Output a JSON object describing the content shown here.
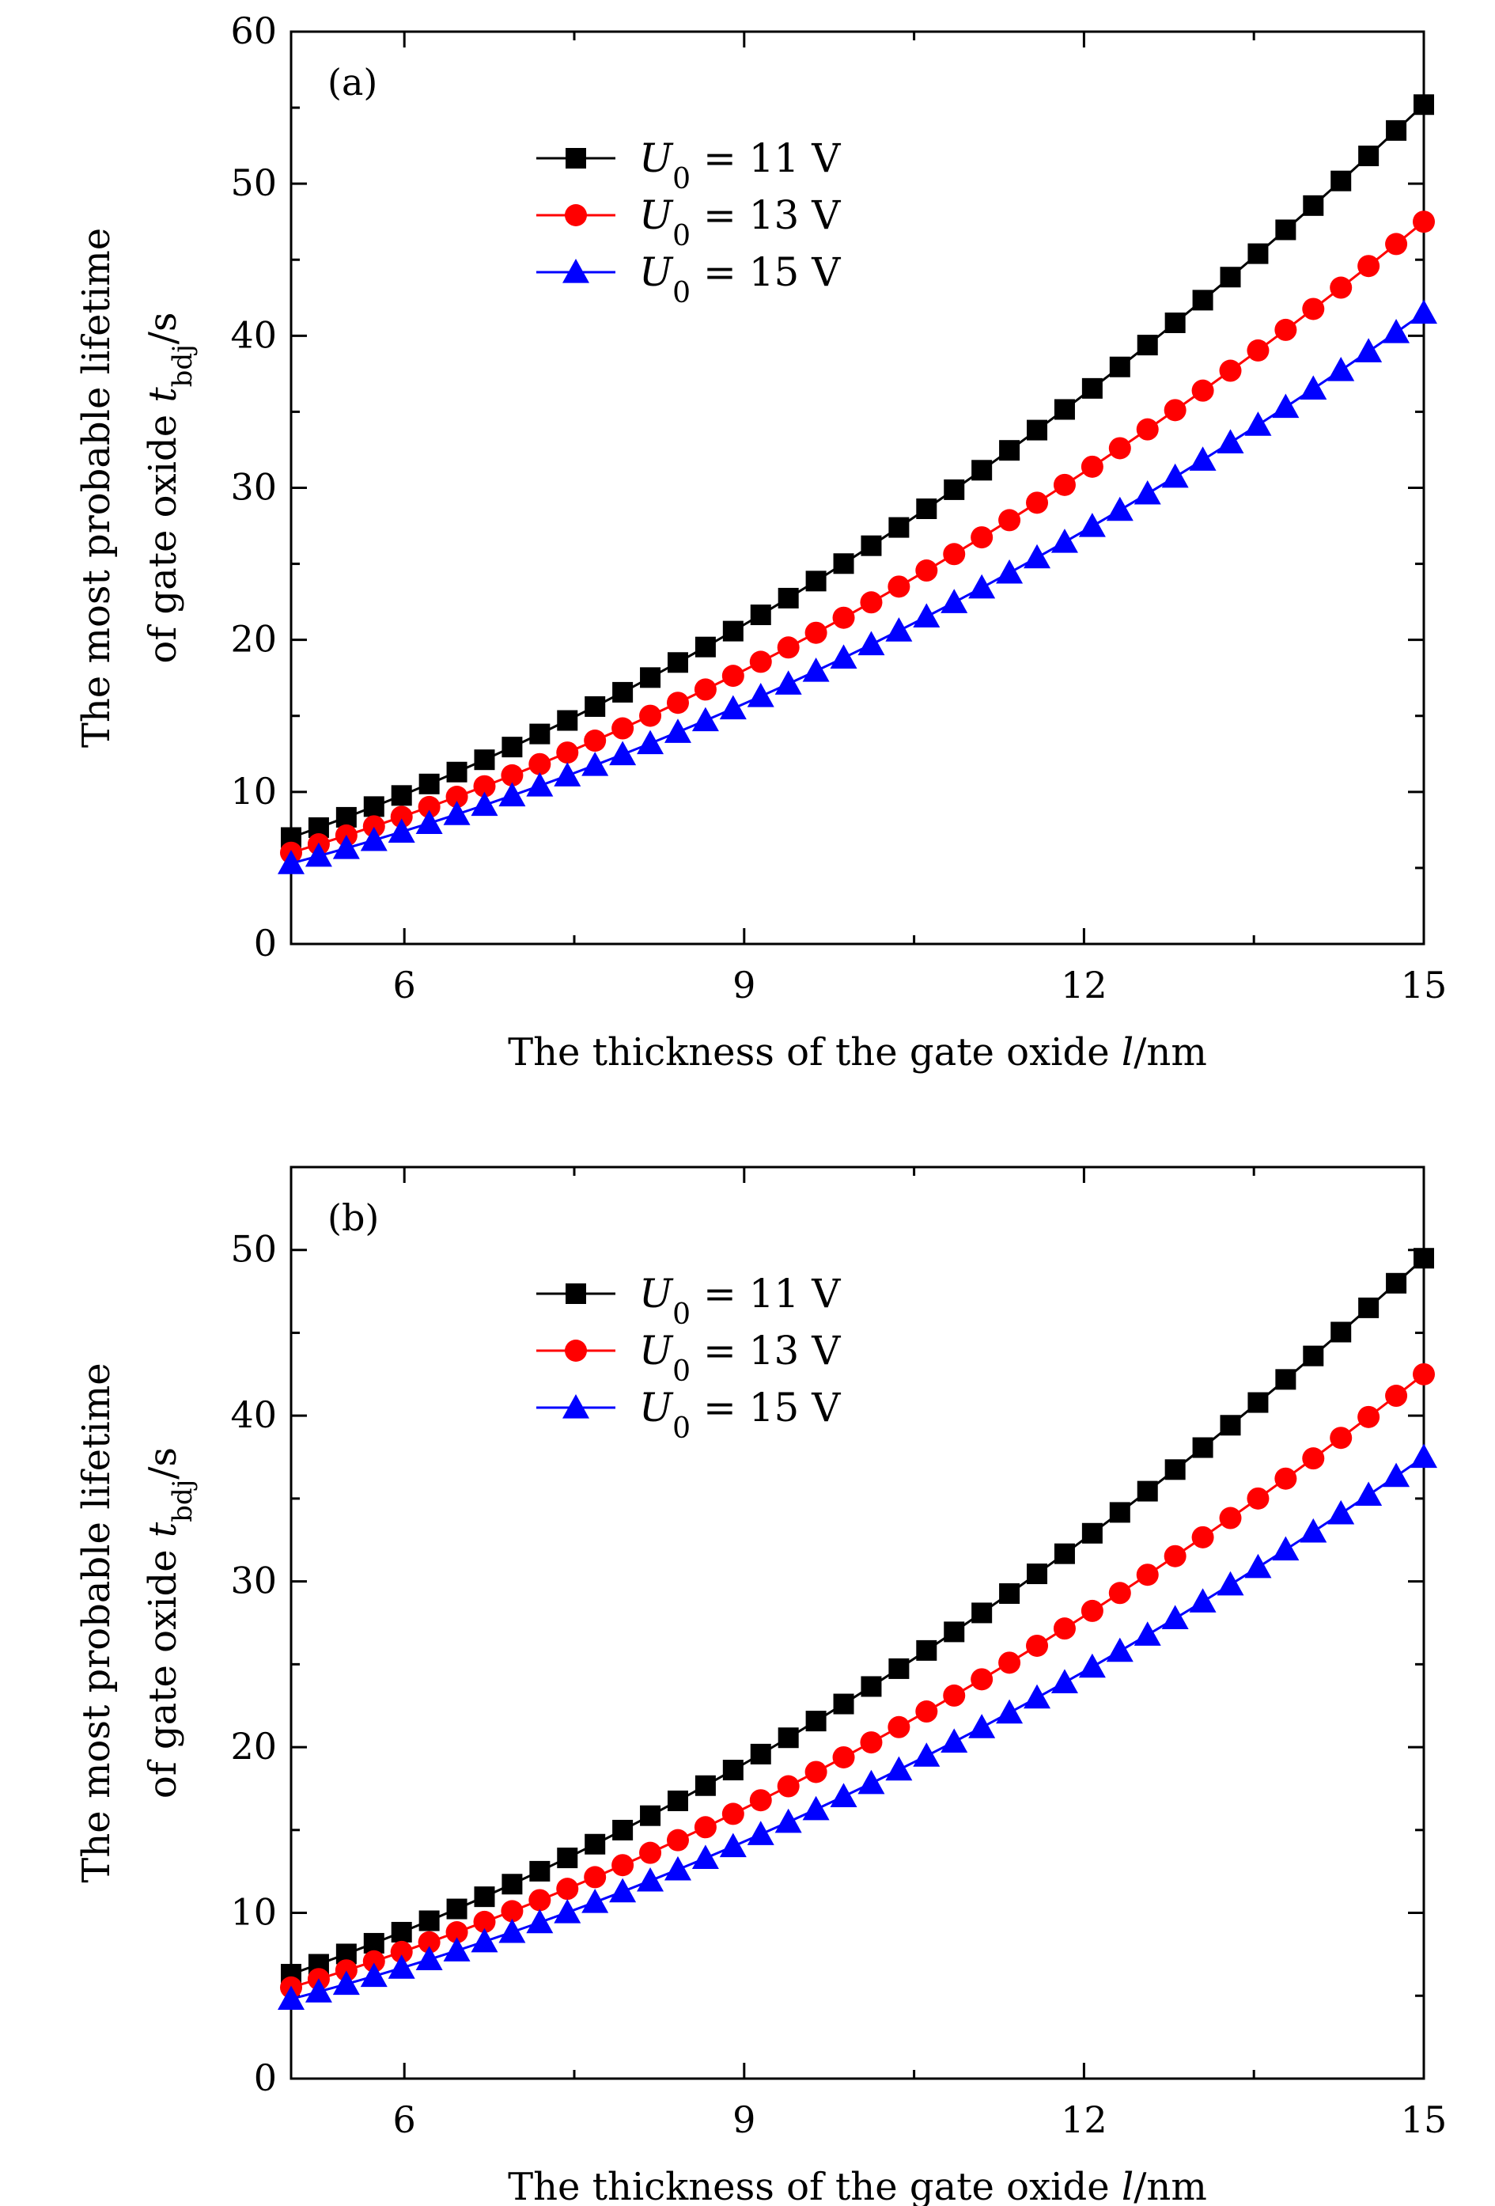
{
  "chart_data": [
    {
      "type": "line",
      "panel_label": "(a)",
      "xlabel": {
        "prefix": "The thickness of the gate oxide ",
        "var": "l",
        "unit": "/nm"
      },
      "ylabel": {
        "line1": "The most probable lifetime",
        "line2_prefix": "of gate oxide ",
        "var": "t",
        "sub": "bdj",
        "unit": "/s"
      },
      "xlim": [
        5,
        15
      ],
      "ylim": [
        0,
        60
      ],
      "xticks": [
        6,
        9,
        12,
        15
      ],
      "yticks": [
        0,
        10,
        20,
        30,
        40,
        50,
        60
      ],
      "x_start": 5,
      "x_end": 15,
      "n_points": 42,
      "series": [
        {
          "name": "U0 = 11 V",
          "label_var": "U",
          "label_sub": "0",
          "label_rest": " = 11 V",
          "marker": "square",
          "color": "#000000",
          "y_start": 7.0,
          "y_mid": 21.0,
          "y_end": 55.2
        },
        {
          "name": "U0 = 13 V",
          "label_var": "U",
          "label_sub": "0",
          "label_rest": " = 13 V",
          "marker": "circle",
          "color": "#ff0000",
          "y_start": 6.0,
          "y_mid": 18.0,
          "y_end": 47.5
        },
        {
          "name": "U0 = 15 V",
          "label_var": "U",
          "label_sub": "0",
          "label_rest": " = 15 V",
          "marker": "triangle",
          "color": "#0000ff",
          "y_start": 5.3,
          "y_mid": 15.8,
          "y_end": 41.5
        }
      ]
    },
    {
      "type": "line",
      "panel_label": "(b)",
      "xlabel": {
        "prefix": "The thickness of the gate oxide ",
        "var": "l",
        "unit": "/nm"
      },
      "ylabel": {
        "line1": "The most probable lifetime",
        "line2_prefix": "of gate oxide ",
        "var": "t",
        "sub": "bdj",
        "unit": "/s"
      },
      "xlim": [
        5,
        15
      ],
      "ylim": [
        0,
        55
      ],
      "xticks": [
        6,
        9,
        12,
        15
      ],
      "yticks": [
        0,
        10,
        20,
        30,
        40,
        50
      ],
      "x_start": 5,
      "x_end": 15,
      "n_points": 42,
      "series": [
        {
          "name": "U0 = 11 V",
          "label_var": "U",
          "label_sub": "0",
          "label_rest": " = 11 V",
          "marker": "square",
          "color": "#000000",
          "y_start": 6.3,
          "y_mid": 19.0,
          "y_end": 49.5
        },
        {
          "name": "U0 = 13 V",
          "label_var": "U",
          "label_sub": "0",
          "label_rest": " = 13 V",
          "marker": "circle",
          "color": "#ff0000",
          "y_start": 5.5,
          "y_mid": 16.3,
          "y_end": 42.5
        },
        {
          "name": "U0 = 15 V",
          "label_var": "U",
          "label_sub": "0",
          "label_rest": " = 15 V",
          "marker": "triangle",
          "color": "#0000ff",
          "y_start": 4.8,
          "y_mid": 14.3,
          "y_end": 37.5
        }
      ]
    }
  ]
}
